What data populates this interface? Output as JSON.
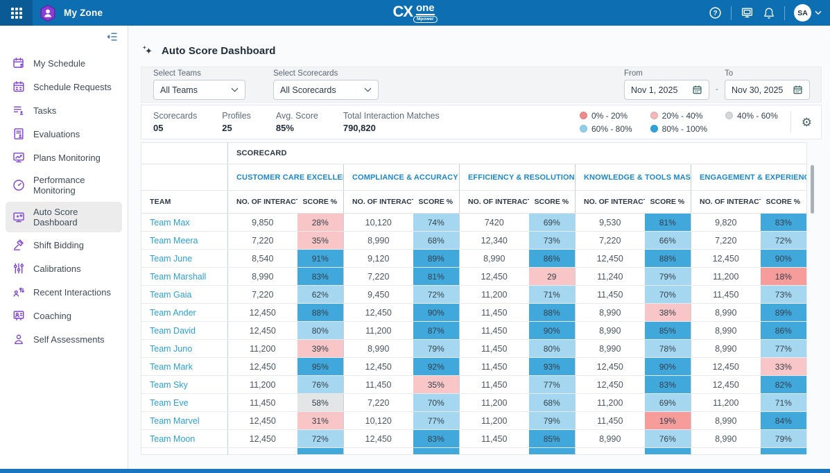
{
  "topbar": {
    "app_title": "My Zone",
    "logo_cx": "CX",
    "logo_one": "one",
    "logo_badge": "Mpower",
    "avatar_initials": "SA"
  },
  "sidebar": {
    "items": [
      {
        "label": "My Schedule",
        "icon": "calendar-user",
        "active": false
      },
      {
        "label": "Schedule Requests",
        "icon": "calendar-check",
        "active": false
      },
      {
        "label": "Tasks",
        "icon": "task-list",
        "active": false
      },
      {
        "label": "Evaluations",
        "icon": "evaluation-doc",
        "active": false
      },
      {
        "label": "Plans Monitoring",
        "icon": "monitor-chart",
        "active": false
      },
      {
        "label": "Performance Monitoring",
        "icon": "gauge",
        "active": false
      },
      {
        "label": "Auto Score Dashboard",
        "icon": "monitor-sparkle",
        "active": true
      },
      {
        "label": "Shift Bidding",
        "icon": "gavel",
        "active": false
      },
      {
        "label": "Calibrations",
        "icon": "sliders",
        "active": false
      },
      {
        "label": "Recent Interactions",
        "icon": "people-arrows",
        "active": false
      },
      {
        "label": "Coaching",
        "icon": "coaching-board",
        "active": false
      },
      {
        "label": "Self Assessments",
        "icon": "person",
        "active": false
      }
    ]
  },
  "page": {
    "title": "Auto Score Dashboard"
  },
  "filters": {
    "teams_label": "Select Teams",
    "teams_value": "All Teams",
    "scorecards_label": "Select Scorecards",
    "scorecards_value": "All Scorecards",
    "from_label": "From",
    "from_value": "Nov 1, 2025",
    "range_separator": "-",
    "to_label": "To",
    "to_value": "Nov 30, 2025"
  },
  "stats": {
    "items": [
      {
        "label": "Scorecards",
        "value": "05"
      },
      {
        "label": "Profiles",
        "value": "25"
      },
      {
        "label": "Avg. Score",
        "value": "85%"
      },
      {
        "label": "Total Interaction Matches",
        "value": "790,820"
      }
    ]
  },
  "legend": {
    "items": [
      {
        "label": "0% - 20%",
        "color": "#ef8a8a"
      },
      {
        "label": "20% - 40%",
        "color": "#f5b7b7"
      },
      {
        "label": "40% - 60%",
        "color": "#d4d7d9"
      },
      {
        "label": "60% - 80%",
        "color": "#8ecfec"
      },
      {
        "label": "80% - 100%",
        "color": "#2fa3d9"
      }
    ]
  },
  "table": {
    "corner_header": "SCORECARD",
    "team_header": "TEAM",
    "group_headers": [
      "CUSTOMER CARE EXCELLENCE",
      "COMPLIANCE & ACCURACY",
      "EFFICIENCY & RESOLUTION",
      "KNOWLEDGE & TOOLS MASTERY...",
      "ENGAGEMENT & EXPERIENCE"
    ],
    "sub_headers": {
      "interactions": "NO. OF INTERACTI...",
      "score": "SCORE %"
    },
    "score_colors": {
      "range_0_20": "#f69c9b",
      "range_20_40": "#f8c6c6",
      "range_40_60": "#e3e5e7",
      "range_60_80": "#a5d8f0",
      "range_80_100": "#41a8dc"
    },
    "rows": [
      {
        "team": "Team Max",
        "cells": [
          {
            "n": "9,850",
            "s": "28%"
          },
          {
            "n": "10,120",
            "s": "74%"
          },
          {
            "n": "7420",
            "s": "69%"
          },
          {
            "n": "9,530",
            "s": "81%"
          },
          {
            "n": "9,820",
            "s": "83%"
          }
        ]
      },
      {
        "team": "Team Meera",
        "cells": [
          {
            "n": "7,220",
            "s": "35%"
          },
          {
            "n": "8,990",
            "s": "68%"
          },
          {
            "n": "12,340",
            "s": "73%"
          },
          {
            "n": "7,220",
            "s": "66%"
          },
          {
            "n": "7,220",
            "s": "72%"
          }
        ]
      },
      {
        "team": "Team June",
        "cells": [
          {
            "n": "8,540",
            "s": "91%"
          },
          {
            "n": "9,120",
            "s": "89%"
          },
          {
            "n": "8,990",
            "s": "86%"
          },
          {
            "n": "12,450",
            "s": "88%"
          },
          {
            "n": "12,450",
            "s": "90%"
          }
        ]
      },
      {
        "team": "Team Marshall",
        "cells": [
          {
            "n": "8,990",
            "s": "83%"
          },
          {
            "n": "7,220",
            "s": "81%"
          },
          {
            "n": "12,450",
            "s": "29"
          },
          {
            "n": "11,240",
            "s": "79%"
          },
          {
            "n": "11,200",
            "s": "18%"
          }
        ]
      },
      {
        "team": "Team Gaia",
        "cells": [
          {
            "n": "7,220",
            "s": "62%"
          },
          {
            "n": "9,450",
            "s": "72%"
          },
          {
            "n": "11,200",
            "s": "71%"
          },
          {
            "n": "11,450",
            "s": "70%"
          },
          {
            "n": "11,450",
            "s": "73%"
          }
        ]
      },
      {
        "team": "Team Ander",
        "cells": [
          {
            "n": "12,450",
            "s": "88%"
          },
          {
            "n": "12,450",
            "s": "90%"
          },
          {
            "n": "11,450",
            "s": "88%"
          },
          {
            "n": "8,990",
            "s": "38%"
          },
          {
            "n": "8,990",
            "s": "89%"
          }
        ]
      },
      {
        "team": "Team David",
        "cells": [
          {
            "n": "12,450",
            "s": "80%"
          },
          {
            "n": "11,200",
            "s": "87%"
          },
          {
            "n": "11,450",
            "s": "90%"
          },
          {
            "n": "8,990",
            "s": "85%"
          },
          {
            "n": "8,990",
            "s": "86%"
          }
        ]
      },
      {
        "team": "Team Juno",
        "cells": [
          {
            "n": "11,200",
            "s": "39%"
          },
          {
            "n": "8,990",
            "s": "79%"
          },
          {
            "n": "11,450",
            "s": "80%"
          },
          {
            "n": "8,990",
            "s": "78%"
          },
          {
            "n": "8,990",
            "s": "77%"
          }
        ]
      },
      {
        "team": "Team Mark",
        "cells": [
          {
            "n": "12,450",
            "s": "95%"
          },
          {
            "n": "12,450",
            "s": "92%"
          },
          {
            "n": "11,450",
            "s": "93%"
          },
          {
            "n": "12,450",
            "s": "90%"
          },
          {
            "n": "12,450",
            "s": "33%"
          }
        ]
      },
      {
        "team": "Team Sky",
        "cells": [
          {
            "n": "11,200",
            "s": "76%"
          },
          {
            "n": "11,450",
            "s": "35%"
          },
          {
            "n": "11,450",
            "s": "77%"
          },
          {
            "n": "12,450",
            "s": "83%"
          },
          {
            "n": "12,450",
            "s": "82%"
          }
        ]
      },
      {
        "team": "Team Eve",
        "cells": [
          {
            "n": "11,450",
            "s": "58%"
          },
          {
            "n": "7,220",
            "s": "70%"
          },
          {
            "n": "11,200",
            "s": "68%"
          },
          {
            "n": "11,200",
            "s": "69%"
          },
          {
            "n": "11,200",
            "s": "71%"
          }
        ]
      },
      {
        "team": "Team Marvel",
        "cells": [
          {
            "n": "12,450",
            "s": "31%"
          },
          {
            "n": "10,120",
            "s": "77%"
          },
          {
            "n": "11,200",
            "s": "79%"
          },
          {
            "n": "11,450",
            "s": "19%"
          },
          {
            "n": "8,990",
            "s": "84%"
          }
        ]
      },
      {
        "team": "Team Moon",
        "cells": [
          {
            "n": "12,450",
            "s": "72%"
          },
          {
            "n": "12,450",
            "s": "83%"
          },
          {
            "n": "11,450",
            "s": "85%"
          },
          {
            "n": "8,990",
            "s": "76%"
          },
          {
            "n": "8,990",
            "s": "79%"
          }
        ]
      }
    ],
    "partial_next_row": true
  }
}
